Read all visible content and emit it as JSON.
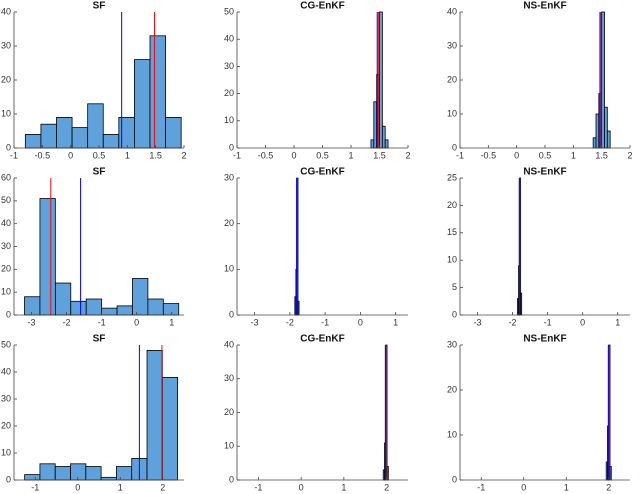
{
  "chart_data": [
    {
      "type": "histogram",
      "title": "SF",
      "bins": [
        -0.8,
        -0.525,
        -0.25,
        0.025,
        0.3,
        0.575,
        0.85,
        1.125,
        1.4,
        1.675,
        1.95
      ],
      "values": [
        4,
        7,
        9,
        6,
        13,
        4,
        9,
        26,
        33,
        9
      ],
      "color": "#5fa2db",
      "xlim": [
        -1,
        2
      ],
      "xticks": [
        -1,
        -0.5,
        0,
        0.5,
        1,
        1.5,
        2
      ],
      "ylim": [
        0,
        40
      ],
      "yticks": [
        0,
        10,
        20,
        30,
        40
      ],
      "lines": [
        {
          "x": 1.48,
          "color": "#ff0000"
        },
        {
          "x": 0.9,
          "color": "#0000ff"
        }
      ]
    },
    {
      "type": "histogram",
      "title": "CG-EnKF",
      "bins": [
        1.35,
        1.4,
        1.45,
        1.5,
        1.55,
        1.6,
        1.65
      ],
      "values": [
        3,
        17,
        27,
        50,
        8,
        3
      ],
      "color": "#5fa2db",
      "xlim": [
        -1,
        2
      ],
      "xticks": [
        -1,
        -0.5,
        0,
        0.5,
        1,
        1.5,
        2
      ],
      "ylim": [
        0,
        50
      ],
      "yticks": [
        0,
        10,
        20,
        30,
        40,
        50
      ],
      "lines": [
        {
          "x": 1.48,
          "color": "#ff0000"
        },
        {
          "x": 1.46,
          "color": "#0000ff"
        }
      ]
    },
    {
      "type": "histogram",
      "title": "NS-EnKF",
      "bins": [
        1.35,
        1.4,
        1.45,
        1.5,
        1.55,
        1.6,
        1.65
      ],
      "values": [
        3,
        10,
        16,
        40,
        12,
        5
      ],
      "color": "#5fa2db",
      "xlim": [
        -1,
        2
      ],
      "xticks": [
        -1,
        -0.5,
        0,
        0.5,
        1,
        1.5,
        2
      ],
      "ylim": [
        0,
        40
      ],
      "yticks": [
        0,
        10,
        20,
        30,
        40
      ],
      "lines": [
        {
          "x": 1.49,
          "color": "#ff0000"
        },
        {
          "x": 1.47,
          "color": "#0000ff"
        }
      ]
    },
    {
      "type": "histogram",
      "title": "SF",
      "bins": [
        -3.2,
        -2.76,
        -2.32,
        -1.88,
        -1.44,
        -1.0,
        -0.56,
        -0.12,
        0.32,
        0.76,
        1.2
      ],
      "values": [
        8,
        51,
        14,
        6,
        7,
        3,
        4,
        16,
        7,
        5
      ],
      "color": "#5fa2db",
      "xlim": [
        -3.5,
        1.35
      ],
      "xticks": [
        -3,
        -2,
        -1,
        0,
        1
      ],
      "ylim": [
        0,
        60
      ],
      "yticks": [
        0,
        10,
        20,
        30,
        40,
        50,
        60
      ],
      "lines": [
        {
          "x": -2.45,
          "color": "#ff0000"
        },
        {
          "x": -1.6,
          "color": "#0000ff"
        }
      ]
    },
    {
      "type": "histogram",
      "title": "CG-EnKF",
      "bins": [
        -1.86,
        -1.83,
        -1.8,
        -1.77,
        -1.74
      ],
      "values": [
        4,
        10,
        30,
        3
      ],
      "color": "#5fa2db",
      "xlim": [
        -3.5,
        1.35
      ],
      "xticks": [
        -3,
        -2,
        -1,
        0,
        1
      ],
      "ylim": [
        0,
        30
      ],
      "yticks": [
        0,
        10,
        20,
        30
      ],
      "lines": [
        {
          "x": -1.8,
          "color": "#ff0000"
        },
        {
          "x": -1.81,
          "color": "#0000ff"
        }
      ]
    },
    {
      "type": "histogram",
      "title": "NS-EnKF",
      "bins": [
        -1.86,
        -1.83,
        -1.8,
        -1.77,
        -1.74
      ],
      "values": [
        3,
        9,
        25,
        4
      ],
      "color": "#5fa2db",
      "xlim": [
        -3.5,
        1.35
      ],
      "xticks": [
        -3,
        -2,
        -1,
        0,
        1
      ],
      "ylim": [
        0,
        25
      ],
      "yticks": [
        0,
        5,
        10,
        15,
        20,
        25
      ],
      "lines": [
        {
          "x": -1.8,
          "color": "#ff0000"
        },
        {
          "x": -1.81,
          "color": "#0000ff"
        }
      ]
    },
    {
      "type": "histogram",
      "title": "SF",
      "bins": [
        -1.25,
        -0.89,
        -0.53,
        -0.17,
        0.19,
        0.55,
        0.91,
        1.27,
        1.63,
        1.99,
        2.35
      ],
      "values": [
        2,
        6,
        5,
        6,
        5,
        1,
        5,
        8,
        48,
        38
      ],
      "color": "#5fa2db",
      "xlim": [
        -1.5,
        2.5
      ],
      "xticks": [
        -1,
        0,
        1,
        2
      ],
      "ylim": [
        0,
        50
      ],
      "yticks": [
        0,
        10,
        20,
        30,
        40,
        50
      ],
      "lines": [
        {
          "x": 1.98,
          "color": "#ff0000"
        },
        {
          "x": 1.45,
          "color": "#0000ff"
        }
      ]
    },
    {
      "type": "histogram",
      "title": "CG-EnKF",
      "bins": [
        1.92,
        1.95,
        1.98,
        2.01,
        2.04
      ],
      "values": [
        3,
        11,
        40,
        4
      ],
      "color": "#5fa2db",
      "xlim": [
        -1.5,
        2.5
      ],
      "xticks": [
        -1,
        0,
        1,
        2
      ],
      "ylim": [
        0,
        40
      ],
      "yticks": [
        0,
        10,
        20,
        30,
        40
      ],
      "lines": [
        {
          "x": 1.98,
          "color": "#ff0000"
        },
        {
          "x": 1.97,
          "color": "#0000ff"
        }
      ]
    },
    {
      "type": "histogram",
      "title": "NS-EnKF",
      "bins": [
        1.94,
        1.97,
        2.0,
        2.03,
        2.06
      ],
      "values": [
        4,
        12,
        30,
        3
      ],
      "color": "#5fa2db",
      "xlim": [
        -1.5,
        2.5
      ],
      "xticks": [
        -1,
        0,
        1,
        2
      ],
      "ylim": [
        0,
        30
      ],
      "yticks": [
        0,
        10,
        20,
        30
      ],
      "lines": [
        {
          "x": 2.0,
          "color": "#ff0000"
        },
        {
          "x": 1.99,
          "color": "#0000ff"
        }
      ]
    }
  ]
}
